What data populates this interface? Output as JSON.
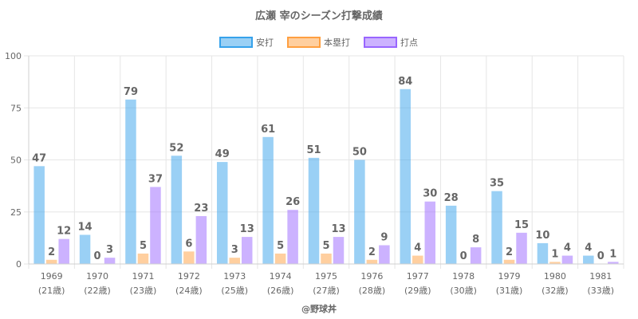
{
  "chart_data": {
    "type": "bar",
    "title": "広瀬 宰のシーズン打撃成績",
    "categories": [
      "1969",
      "1970",
      "1971",
      "1972",
      "1973",
      "1974",
      "1975",
      "1976",
      "1977",
      "1978",
      "1979",
      "1980",
      "1981"
    ],
    "category_sublabels": [
      "(21歳)",
      "(22歳)",
      "(23歳)",
      "(24歳)",
      "(25歳)",
      "(26歳)",
      "(27歳)",
      "(28歳)",
      "(29歳)",
      "(30歳)",
      "(31歳)",
      "(32歳)",
      "(33歳)"
    ],
    "series": [
      {
        "name": "安打",
        "color": "#36a2eb",
        "values": [
          47,
          14,
          79,
          52,
          49,
          61,
          51,
          50,
          84,
          28,
          35,
          10,
          4
        ]
      },
      {
        "name": "本塁打",
        "color": "#ff9f40",
        "values": [
          2,
          0,
          5,
          6,
          3,
          5,
          5,
          2,
          4,
          0,
          2,
          1,
          0
        ]
      },
      {
        "name": "打点",
        "color": "#9966ff",
        "values": [
          12,
          3,
          37,
          23,
          13,
          26,
          13,
          9,
          30,
          8,
          15,
          4,
          1
        ]
      }
    ],
    "ylim": [
      0,
      100
    ],
    "yticks": [
      0,
      25,
      50,
      75,
      100
    ],
    "grid": true,
    "legend_position": "top",
    "credit": "@野球丼"
  }
}
